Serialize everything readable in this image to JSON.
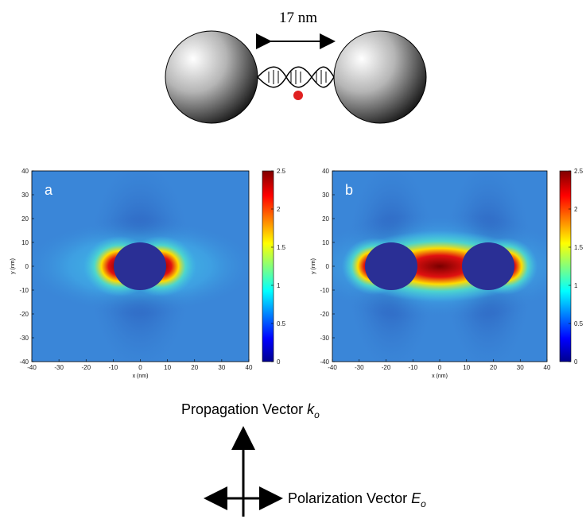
{
  "diagram": {
    "distance_label": "17 nm"
  },
  "panels": [
    {
      "label": "a",
      "xlabel": "x (nm)",
      "ylabel": "y (nm)",
      "xlim": [
        -40,
        40
      ],
      "ylim": [
        -40,
        40
      ],
      "xticks": [
        -40,
        -30,
        -20,
        -10,
        0,
        10,
        20,
        30,
        40
      ],
      "yticks": [
        -40,
        -30,
        -20,
        -10,
        0,
        10,
        20,
        30,
        40
      ],
      "clim": [
        0,
        2.5
      ],
      "cticks": [
        0,
        0.5,
        1,
        1.5,
        2,
        2.5
      ]
    },
    {
      "label": "b",
      "xlabel": "x (nm)",
      "ylabel": "y (nm)",
      "xlim": [
        -40,
        40
      ],
      "ylim": [
        -40,
        40
      ],
      "xticks": [
        -40,
        -30,
        -20,
        -10,
        0,
        10,
        20,
        30,
        40
      ],
      "yticks": [
        -40,
        -30,
        -20,
        -10,
        0,
        10,
        20,
        30,
        40
      ],
      "clim": [
        0,
        2.5
      ],
      "cticks": [
        0,
        0.5,
        1,
        1.5,
        2,
        2.5
      ]
    }
  ],
  "vectors": {
    "propagation": {
      "text": "Propagation Vector",
      "symbol": "k",
      "subscript": "o"
    },
    "polarization": {
      "text": "Polarization Vector",
      "symbol": "E",
      "subscript": "o"
    }
  }
}
